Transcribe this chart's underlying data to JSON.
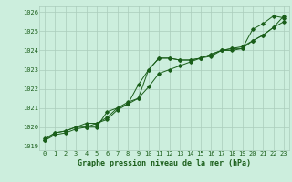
{
  "title": "Graphe pression niveau de la mer (hPa)",
  "bg_color": "#cceedd",
  "grid_color": "#aaccbb",
  "line_color": "#1a5e1a",
  "x_labels": [
    "0",
    "1",
    "2",
    "3",
    "4",
    "5",
    "6",
    "7",
    "8",
    "9",
    "10",
    "11",
    "12",
    "13",
    "14",
    "15",
    "16",
    "17",
    "18",
    "19",
    "20",
    "21",
    "22",
    "23"
  ],
  "ylim": [
    1018.8,
    1026.3
  ],
  "yticks": [
    1019,
    1020,
    1021,
    1022,
    1023,
    1024,
    1025,
    1026
  ],
  "series1": [
    1019.3,
    1019.7,
    1019.8,
    1020.0,
    1020.0,
    1020.0,
    1020.8,
    1021.0,
    1021.3,
    1021.5,
    1023.0,
    1023.6,
    1023.6,
    1023.5,
    1023.5,
    1023.6,
    1023.7,
    1024.0,
    1024.0,
    1024.1,
    1025.1,
    1025.4,
    1025.8,
    1025.7
  ],
  "series2": [
    1019.4,
    1019.7,
    1019.8,
    1020.0,
    1020.2,
    1020.2,
    1020.5,
    1021.0,
    1021.2,
    1022.2,
    1023.0,
    1023.6,
    1023.6,
    1023.5,
    1023.5,
    1023.6,
    1023.8,
    1024.0,
    1024.1,
    1024.1,
    1024.5,
    1024.8,
    1025.2,
    1025.8
  ],
  "series3": [
    1019.3,
    1019.6,
    1019.7,
    1019.9,
    1020.0,
    1020.2,
    1020.4,
    1020.9,
    1021.2,
    1021.5,
    1022.1,
    1022.8,
    1023.0,
    1023.2,
    1023.4,
    1023.6,
    1023.8,
    1024.0,
    1024.1,
    1024.2,
    1024.5,
    1024.8,
    1025.2,
    1025.5
  ]
}
